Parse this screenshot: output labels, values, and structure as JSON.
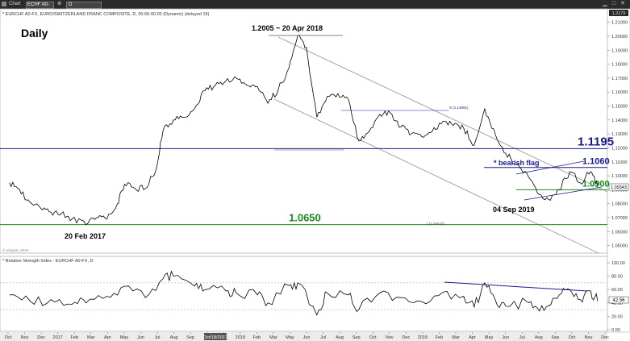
{
  "window": {
    "app_label": "Chart",
    "symbol": "ECHF A0-FX",
    "interval": "D",
    "right_badge": "1.2179"
  },
  "header_text": "* EURCHF A0-FX, EURO/SWITZERLAND FRANC COMPOSITE, D, 00:00-00.00 (Dynamic) (delayed 15)",
  "title": "Daily",
  "watermark": "© eSignal, 2019",
  "price_axis": {
    "ticks": [
      "1.21000",
      "1.20000",
      "1.19000",
      "1.18000",
      "1.17000",
      "1.16000",
      "1.15000",
      "1.14000",
      "1.13000",
      "1.12000",
      "1.11000",
      "1.10000",
      "1.09000",
      "1.08000",
      "1.07000",
      "1.06000",
      "1.05000"
    ],
    "last_price_label": "1.09343"
  },
  "levels": [
    {
      "label": "1.1195",
      "value": 1.1195,
      "color": "#1a1a8c"
    },
    {
      "label": "1.1060",
      "value": 1.106,
      "color": "#1a1a8c"
    },
    {
      "label": "1.0900",
      "value": 1.09,
      "color": "#1a8c1a"
    },
    {
      "label": "1.0650",
      "value": 1.065,
      "color": "#1a8c1a"
    }
  ],
  "annotations": {
    "peak": "1.2005 ~ 20 Apr 2018",
    "low_2017": "20 Feb 2017",
    "low_2019": "04 Sep 2019",
    "pattern": "* bearish flag",
    "small_mark_1": "S (1.14891)",
    "small_mark_2": "1 (1.06547)"
  },
  "rsi": {
    "header": "* Relative Strength Index - EURCHF A0-FX, D",
    "ticks": [
      "100.00",
      "80.00",
      "60.00",
      "40.00",
      "20.00",
      "0.00"
    ],
    "last_value_label": "42.56"
  },
  "time_axis": {
    "labels": [
      "Oct",
      "Nov",
      "Dec",
      "2017",
      "Feb",
      "Mar",
      "Apr",
      "May",
      "Jun",
      "Jul",
      "Aug",
      "Sep",
      "Oct",
      "Dec",
      "2018",
      "Feb",
      "Mar",
      "May",
      "Jun",
      "Jul",
      "Aug",
      "Sep",
      "Oct",
      "Nov",
      "Dec",
      "2019",
      "Feb",
      "Mar",
      "Apr",
      "May",
      "Jun",
      "Jul",
      "Aug",
      "Sep",
      "Oct",
      "Nov",
      "Dec"
    ],
    "highlight_label": "Oct/18/2017"
  },
  "colors": {
    "price_line": "#000000",
    "resistance": "#1a1a8c",
    "support": "#1a8c1a",
    "channel": "#9a9a9a",
    "rsi_trend": "#1a1a8c"
  },
  "chart_data": {
    "type": "line",
    "title": "Daily",
    "instrument": "EURCHF",
    "ylim": [
      1.045,
      1.215
    ],
    "series": [
      {
        "name": "EURCHF A0-FX",
        "points": [
          [
            "2016-09-20",
            1.095
          ],
          [
            "2016-10-10",
            1.09
          ],
          [
            "2016-10-31",
            1.081
          ],
          [
            "2016-11-21",
            1.077
          ],
          [
            "2016-12-12",
            1.074
          ],
          [
            "2017-01-02",
            1.073
          ],
          [
            "2017-01-23",
            1.069
          ],
          [
            "2017-02-20",
            1.065
          ],
          [
            "2017-03-13",
            1.07
          ],
          [
            "2017-04-03",
            1.069
          ],
          [
            "2017-04-24",
            1.08
          ],
          [
            "2017-05-08",
            1.094
          ],
          [
            "2017-05-29",
            1.091
          ],
          [
            "2017-06-19",
            1.091
          ],
          [
            "2017-07-10",
            1.104
          ],
          [
            "2017-07-24",
            1.132
          ],
          [
            "2017-08-14",
            1.14
          ],
          [
            "2017-09-04",
            1.142
          ],
          [
            "2017-09-25",
            1.148
          ],
          [
            "2017-10-16",
            1.161
          ],
          [
            "2017-11-06",
            1.165
          ],
          [
            "2017-11-27",
            1.168
          ],
          [
            "2017-12-18",
            1.17
          ],
          [
            "2018-01-08",
            1.165
          ],
          [
            "2018-01-29",
            1.164
          ],
          [
            "2018-02-19",
            1.152
          ],
          [
            "2018-03-12",
            1.162
          ],
          [
            "2018-04-02",
            1.177
          ],
          [
            "2018-04-20",
            1.2005
          ],
          [
            "2018-05-07",
            1.192
          ],
          [
            "2018-05-28",
            1.142
          ],
          [
            "2018-06-18",
            1.157
          ],
          [
            "2018-07-09",
            1.159
          ],
          [
            "2018-07-30",
            1.155
          ],
          [
            "2018-08-20",
            1.125
          ],
          [
            "2018-09-10",
            1.132
          ],
          [
            "2018-10-01",
            1.144
          ],
          [
            "2018-10-22",
            1.145
          ],
          [
            "2018-11-12",
            1.135
          ],
          [
            "2018-12-03",
            1.13
          ],
          [
            "2018-12-24",
            1.128
          ],
          [
            "2019-01-14",
            1.132
          ],
          [
            "2019-02-04",
            1.139
          ],
          [
            "2019-02-25",
            1.136
          ],
          [
            "2019-03-18",
            1.134
          ],
          [
            "2019-04-08",
            1.122
          ],
          [
            "2019-04-29",
            1.148
          ],
          [
            "2019-05-20",
            1.13
          ],
          [
            "2019-06-10",
            1.116
          ],
          [
            "2019-07-01",
            1.108
          ],
          [
            "2019-07-22",
            1.102
          ],
          [
            "2019-08-12",
            1.088
          ],
          [
            "2019-09-04",
            1.083
          ],
          [
            "2019-09-25",
            1.09
          ],
          [
            "2019-10-16",
            1.103
          ],
          [
            "2019-11-06",
            1.095
          ],
          [
            "2019-11-27",
            1.103
          ],
          [
            "2019-12-11",
            1.093
          ]
        ]
      },
      {
        "name": "Relative Strength Index",
        "points": [
          [
            "2016-09-20",
            52
          ],
          [
            "2016-10-31",
            43
          ],
          [
            "2016-12-12",
            45
          ],
          [
            "2017-01-23",
            38
          ],
          [
            "2017-02-20",
            40
          ],
          [
            "2017-04-03",
            50
          ],
          [
            "2017-05-08",
            65
          ],
          [
            "2017-06-19",
            48
          ],
          [
            "2017-07-24",
            76
          ],
          [
            "2017-08-14",
            80
          ],
          [
            "2017-09-25",
            65
          ],
          [
            "2017-10-16",
            60
          ],
          [
            "2017-11-27",
            58
          ],
          [
            "2017-12-18",
            55
          ],
          [
            "2018-01-29",
            52
          ],
          [
            "2018-02-19",
            40
          ],
          [
            "2018-04-02",
            66
          ],
          [
            "2018-04-20",
            70
          ],
          [
            "2018-05-28",
            22
          ],
          [
            "2018-06-18",
            55
          ],
          [
            "2018-07-30",
            52
          ],
          [
            "2018-08-20",
            30
          ],
          [
            "2018-10-01",
            55
          ],
          [
            "2018-11-12",
            48
          ],
          [
            "2018-12-24",
            42
          ],
          [
            "2019-02-04",
            56
          ],
          [
            "2019-03-18",
            50
          ],
          [
            "2019-04-08",
            34
          ],
          [
            "2019-04-29",
            70
          ],
          [
            "2019-05-20",
            45
          ],
          [
            "2019-06-10",
            35
          ],
          [
            "2019-07-22",
            42
          ],
          [
            "2019-08-12",
            33
          ],
          [
            "2019-09-04",
            36
          ],
          [
            "2019-09-25",
            52
          ],
          [
            "2019-10-16",
            60
          ],
          [
            "2019-11-06",
            45
          ],
          [
            "2019-11-27",
            58
          ],
          [
            "2019-12-11",
            42.56
          ]
        ]
      }
    ]
  }
}
